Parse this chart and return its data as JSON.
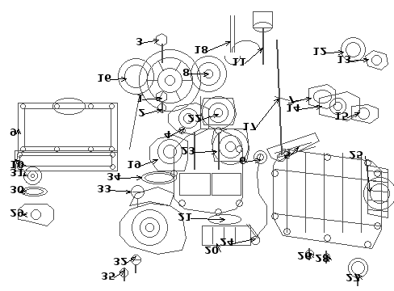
{
  "bg_color": "#ffffff",
  "fig_width": 4.89,
  "fig_height": 3.6,
  "dpi": 100,
  "title": "",
  "parts_image_b64": ""
}
